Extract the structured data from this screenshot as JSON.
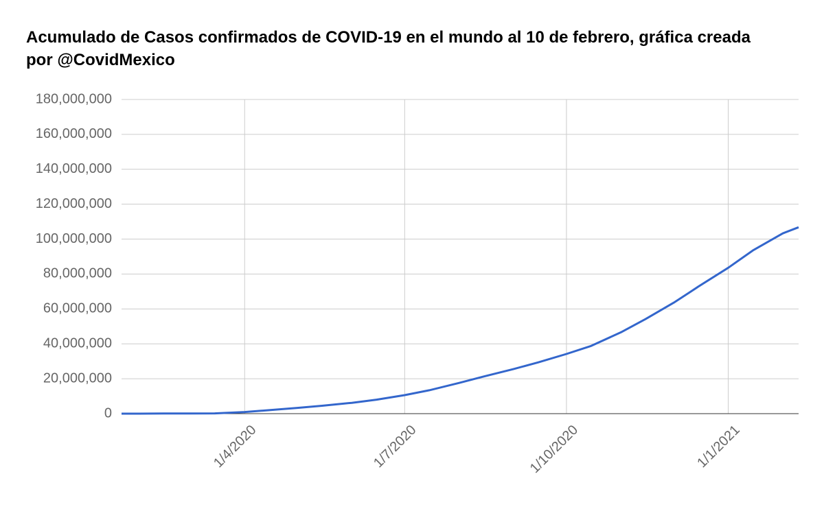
{
  "chart_data": {
    "type": "line",
    "title": "Acumulado de Casos confirmados de COVID-19 en el mundo al 10 de febrero, gráfica creada por @CovidMexico",
    "x": [
      "22/1/2020",
      "1/2/2020",
      "15/2/2020",
      "1/3/2020",
      "15/3/2020",
      "1/4/2020",
      "15/4/2020",
      "1/5/2020",
      "15/5/2020",
      "1/6/2020",
      "15/6/2020",
      "1/7/2020",
      "15/7/2020",
      "1/8/2020",
      "15/8/2020",
      "1/9/2020",
      "15/9/2020",
      "1/10/2020",
      "15/10/2020",
      "1/11/2020",
      "15/11/2020",
      "1/12/2020",
      "10/12/2020",
      "15/12/2020",
      "1/1/2021",
      "15/1/2021",
      "1/2/2021",
      "10/2/2021"
    ],
    "values": [
      555,
      12000,
      69000,
      88000,
      170000,
      930000,
      2000000,
      3300000,
      4500000,
      6200000,
      8000000,
      10600000,
      13400000,
      17600000,
      21300000,
      25600000,
      29400000,
      34200000,
      38800000,
      46600000,
      54200000,
      63600000,
      69500000,
      72800000,
      83600000,
      93500000,
      103300000,
      106800000
    ],
    "color": "#3366cc",
    "xlim": [
      "22/1/2020",
      "10/2/2021"
    ],
    "xticks": [
      "1/4/2020",
      "1/7/2020",
      "1/10/2020",
      "1/1/2021"
    ],
    "ylim": [
      0,
      180000000
    ],
    "yticks": [
      0,
      {
        "value": 20000000,
        "label": "20,000,000"
      },
      {
        "value": 40000000,
        "label": "40,000,000"
      },
      {
        "value": 60000000,
        "label": "60,000,000"
      },
      {
        "value": 80000000,
        "label": "80,000,000"
      },
      {
        "value": 100000000,
        "label": "100,000,000"
      },
      {
        "value": 120000000,
        "label": "120,000,000"
      },
      {
        "value": 140000000,
        "label": "140,000,000"
      },
      {
        "value": 160000000,
        "label": "160,000,000"
      },
      {
        "value": 180000000,
        "label": "180,000,000"
      }
    ],
    "grid": true
  }
}
